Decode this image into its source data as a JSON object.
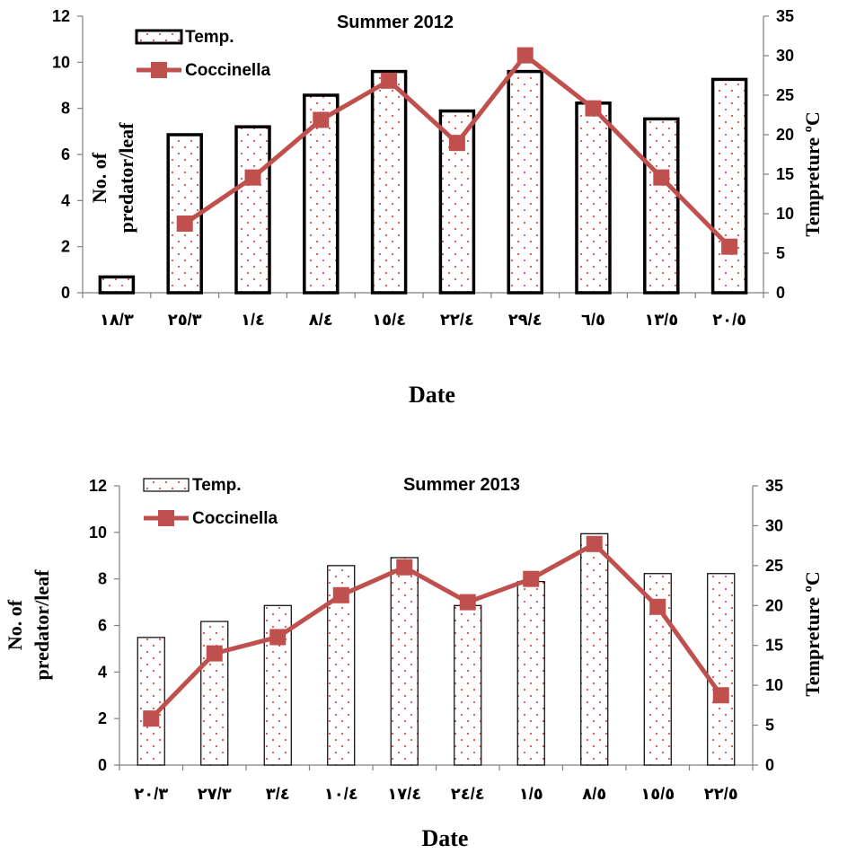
{
  "chart_data": [
    {
      "type": "bar",
      "title": "Summer 2012",
      "xlabel": "Date",
      "ylabel_left_lines": [
        "No. of",
        "predator/leaf"
      ],
      "ylabel_right": "Tempreture  ºC",
      "ylim_left": [
        0,
        12
      ],
      "ylim_right": [
        0,
        35
      ],
      "yticks_left": [
        "0",
        "2",
        "4",
        "6",
        "8",
        "10",
        "12"
      ],
      "yticks_right": [
        "0",
        "5",
        "10",
        "15",
        "20",
        "25",
        "30",
        "35"
      ],
      "categories": [
        "١٨/٣",
        "٢٥/٣",
        "١/٤",
        "٨/٤",
        "١٥/٤",
        "٢٢/٤",
        "٢٩/٤",
        "٦/٥",
        "١٣/٥",
        "٢٠/٥"
      ],
      "legend_position": "top-left",
      "series": [
        {
          "name": "Temp.",
          "type": "bar",
          "axis": "right",
          "values": [
            2,
            20,
            21,
            25,
            28,
            23,
            28,
            24,
            22,
            27
          ]
        },
        {
          "name": "Coccinella",
          "type": "line",
          "axis": "left",
          "values": [
            null,
            3.0,
            5.0,
            7.5,
            9.2,
            6.5,
            10.3,
            8.0,
            5.0,
            2.0
          ]
        }
      ]
    },
    {
      "type": "bar",
      "title": "Summer 2013",
      "xlabel": "Date",
      "ylabel_left_lines": [
        "No. of",
        "predator/leaf"
      ],
      "ylabel_right": "Tempreture  ºC",
      "ylim_left": [
        0,
        12
      ],
      "ylim_right": [
        0,
        35
      ],
      "yticks_left": [
        "0",
        "2",
        "4",
        "6",
        "8",
        "10",
        "12"
      ],
      "yticks_right": [
        "0",
        "5",
        "10",
        "15",
        "20",
        "25",
        "30",
        "35"
      ],
      "categories": [
        "٢٠/٣",
        "٢٧/٣",
        "٣/٤",
        "١٠/٤",
        "١٧/٤",
        "٢٤/٤",
        "١/٥",
        "٨/٥",
        "١٥/٥",
        "٢٢/٥"
      ],
      "legend_position": "top-left",
      "series": [
        {
          "name": "Temp.",
          "type": "bar",
          "axis": "right",
          "values": [
            16,
            18,
            20,
            25,
            26,
            20,
            23,
            29,
            24,
            24
          ]
        },
        {
          "name": "Coccinella",
          "type": "line",
          "axis": "left",
          "values": [
            2.0,
            4.8,
            5.5,
            7.3,
            8.5,
            7.0,
            8.0,
            9.5,
            6.8,
            3.0
          ]
        }
      ]
    }
  ],
  "colors": {
    "bar_dots": "#d9534f",
    "line": "#c0504d",
    "axis": "#808080"
  }
}
